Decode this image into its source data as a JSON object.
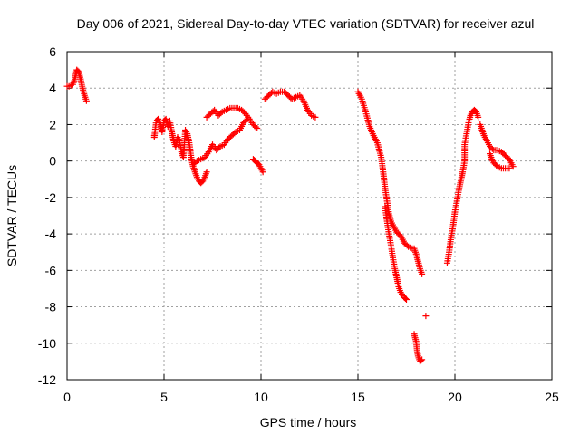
{
  "chart_data": {
    "type": "scatter",
    "title": "Day 006 of 2021, Sidereal Day-to-day VTEC variation (SDTVAR) for receiver azul",
    "xlabel": "GPS time / hours",
    "ylabel": "SDTVAR / TECUs",
    "xlim": [
      0,
      25
    ],
    "ylim": [
      -12,
      6
    ],
    "xticks": [
      0,
      5,
      10,
      15,
      20,
      25
    ],
    "yticks": [
      -12,
      -10,
      -8,
      -6,
      -4,
      -2,
      0,
      2,
      4,
      6
    ],
    "grid": true,
    "marker": "plus",
    "color": "#ff0000",
    "segments": [
      {
        "name": "seg-0-1h",
        "points": [
          [
            0.0,
            4.1
          ],
          [
            0.1,
            4.1
          ],
          [
            0.2,
            4.15
          ],
          [
            0.3,
            4.2
          ],
          [
            0.4,
            4.5
          ],
          [
            0.5,
            5.0
          ],
          [
            0.6,
            4.9
          ],
          [
            0.7,
            4.5
          ],
          [
            0.8,
            4.0
          ],
          [
            0.9,
            3.6
          ],
          [
            1.0,
            3.3
          ]
        ]
      },
      {
        "name": "seg-4-7h",
        "points": [
          [
            4.5,
            1.4
          ],
          [
            4.5,
            1.3
          ],
          [
            4.6,
            2.2
          ],
          [
            4.7,
            2.3
          ],
          [
            4.8,
            2.1
          ],
          [
            4.9,
            1.6
          ],
          [
            5.0,
            2.2
          ],
          [
            5.1,
            2.3
          ],
          [
            5.2,
            1.9
          ],
          [
            5.3,
            2.2
          ],
          [
            5.4,
            1.6
          ],
          [
            5.5,
            1.1
          ],
          [
            5.6,
            0.8
          ],
          [
            5.7,
            1.3
          ],
          [
            5.8,
            1.1
          ],
          [
            5.9,
            0.5
          ],
          [
            6.0,
            0.2
          ],
          [
            6.1,
            1.7
          ],
          [
            6.2,
            1.5
          ],
          [
            6.3,
            1.0
          ],
          [
            6.4,
            0.2
          ],
          [
            6.5,
            -0.3
          ],
          [
            6.6,
            -0.6
          ],
          [
            6.7,
            -0.9
          ],
          [
            6.8,
            -1.1
          ],
          [
            6.9,
            -1.2
          ],
          [
            7.0,
            -1.1
          ],
          [
            7.1,
            -0.9
          ],
          [
            7.2,
            -0.6
          ]
        ]
      },
      {
        "name": "seg-6-8h-lower",
        "points": [
          [
            6.5,
            -0.2
          ],
          [
            6.7,
            0.0
          ],
          [
            6.9,
            0.1
          ],
          [
            7.1,
            0.2
          ],
          [
            7.3,
            0.5
          ],
          [
            7.5,
            0.9
          ],
          [
            7.7,
            0.6
          ],
          [
            7.9,
            0.8
          ],
          [
            8.1,
            0.9
          ],
          [
            8.3,
            1.2
          ],
          [
            8.5,
            1.4
          ],
          [
            8.7,
            1.6
          ],
          [
            8.9,
            1.7
          ],
          [
            9.1,
            2.1
          ],
          [
            9.3,
            2.3
          ]
        ]
      },
      {
        "name": "seg-7-10h-upper",
        "points": [
          [
            7.2,
            2.4
          ],
          [
            7.4,
            2.6
          ],
          [
            7.6,
            2.8
          ],
          [
            7.8,
            2.5
          ],
          [
            8.0,
            2.7
          ],
          [
            8.2,
            2.8
          ],
          [
            8.4,
            2.9
          ],
          [
            8.6,
            2.9
          ],
          [
            8.8,
            2.9
          ],
          [
            9.0,
            2.8
          ],
          [
            9.2,
            2.6
          ],
          [
            9.4,
            2.3
          ],
          [
            9.6,
            2.0
          ],
          [
            9.8,
            1.8
          ]
        ]
      },
      {
        "name": "seg-9.5-10h",
        "points": [
          [
            9.6,
            0.1
          ],
          [
            9.7,
            0.0
          ],
          [
            9.8,
            -0.1
          ],
          [
            9.9,
            -0.2
          ],
          [
            10.0,
            -0.4
          ],
          [
            10.1,
            -0.6
          ]
        ]
      },
      {
        "name": "seg-10-13h",
        "points": [
          [
            10.2,
            3.4
          ],
          [
            10.4,
            3.6
          ],
          [
            10.6,
            3.8
          ],
          [
            10.8,
            3.7
          ],
          [
            11.0,
            3.8
          ],
          [
            11.2,
            3.8
          ],
          [
            11.4,
            3.6
          ],
          [
            11.6,
            3.4
          ],
          [
            11.8,
            3.5
          ],
          [
            12.0,
            3.6
          ],
          [
            12.2,
            3.3
          ],
          [
            12.4,
            2.8
          ],
          [
            12.6,
            2.5
          ],
          [
            12.8,
            2.4
          ]
        ]
      },
      {
        "name": "seg-15-17.5h-upper",
        "points": [
          [
            15.0,
            3.8
          ],
          [
            15.2,
            3.4
          ],
          [
            15.4,
            2.7
          ],
          [
            15.6,
            1.9
          ],
          [
            15.8,
            1.4
          ],
          [
            16.0,
            1.0
          ],
          [
            16.2,
            0.2
          ],
          [
            16.3,
            -0.6
          ],
          [
            16.4,
            -1.5
          ],
          [
            16.5,
            -2.2
          ],
          [
            16.6,
            -2.9
          ],
          [
            16.7,
            -3.3
          ],
          [
            16.8,
            -3.5
          ],
          [
            17.0,
            -3.9
          ],
          [
            17.2,
            -4.1
          ],
          [
            17.4,
            -4.5
          ],
          [
            17.6,
            -4.7
          ],
          [
            17.8,
            -4.8
          ]
        ]
      },
      {
        "name": "seg-15-17.5h-lower",
        "points": [
          [
            16.4,
            -2.5
          ],
          [
            16.5,
            -3.3
          ],
          [
            16.6,
            -4.0
          ],
          [
            16.7,
            -4.6
          ],
          [
            16.8,
            -5.3
          ],
          [
            16.9,
            -5.9
          ],
          [
            17.0,
            -6.4
          ],
          [
            17.1,
            -6.9
          ],
          [
            17.2,
            -7.2
          ],
          [
            17.4,
            -7.5
          ],
          [
            17.5,
            -7.6
          ]
        ]
      },
      {
        "name": "seg-18h",
        "points": [
          [
            17.9,
            -4.8
          ],
          [
            18.0,
            -5.1
          ],
          [
            18.1,
            -5.5
          ],
          [
            18.2,
            -5.9
          ],
          [
            18.3,
            -6.2
          ]
        ]
      },
      {
        "name": "seg-18.5h-dot",
        "points": [
          [
            18.5,
            -8.5
          ]
        ]
      },
      {
        "name": "seg-18h-bottom",
        "points": [
          [
            17.9,
            -9.5
          ],
          [
            18.0,
            -9.9
          ],
          [
            18.05,
            -10.4
          ],
          [
            18.1,
            -10.7
          ],
          [
            18.2,
            -11.0
          ],
          [
            18.3,
            -10.9
          ]
        ]
      },
      {
        "name": "seg-19.5-21h",
        "points": [
          [
            19.6,
            -5.6
          ],
          [
            19.7,
            -5.0
          ],
          [
            19.8,
            -4.2
          ],
          [
            19.9,
            -3.6
          ],
          [
            20.0,
            -2.8
          ],
          [
            20.1,
            -2.2
          ],
          [
            20.2,
            -1.6
          ],
          [
            20.3,
            -1.1
          ],
          [
            20.4,
            -0.6
          ],
          [
            20.5,
            0.0
          ],
          [
            20.5,
            0.9
          ],
          [
            20.6,
            1.5
          ],
          [
            20.7,
            2.1
          ],
          [
            20.8,
            2.5
          ],
          [
            20.9,
            2.7
          ],
          [
            21.0,
            2.8
          ],
          [
            21.1,
            2.7
          ],
          [
            21.2,
            2.4
          ]
        ]
      },
      {
        "name": "seg-21-23h",
        "points": [
          [
            21.3,
            2.0
          ],
          [
            21.4,
            1.7
          ],
          [
            21.5,
            1.4
          ],
          [
            21.6,
            1.2
          ],
          [
            21.8,
            0.8
          ],
          [
            22.0,
            0.6
          ],
          [
            22.2,
            0.6
          ],
          [
            22.4,
            0.5
          ],
          [
            22.6,
            0.3
          ],
          [
            22.8,
            0.1
          ],
          [
            23.0,
            -0.3
          ]
        ]
      },
      {
        "name": "seg-21.5-23h-lower",
        "points": [
          [
            21.8,
            0.4
          ],
          [
            21.9,
            0.1
          ],
          [
            22.0,
            -0.1
          ],
          [
            22.2,
            -0.3
          ],
          [
            22.4,
            -0.4
          ],
          [
            22.6,
            -0.4
          ],
          [
            22.8,
            -0.4
          ]
        ]
      }
    ]
  }
}
